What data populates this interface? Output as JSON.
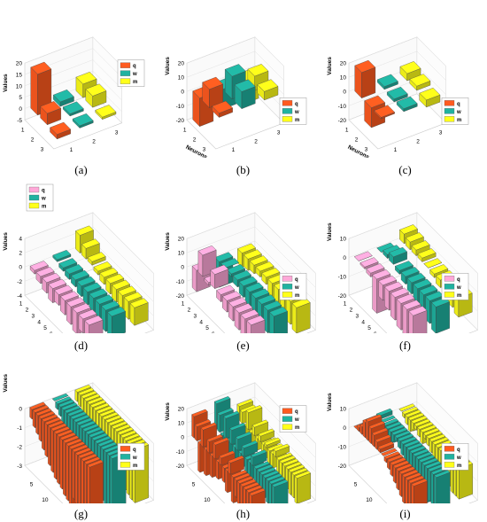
{
  "colors": {
    "q": "#ff5a1f",
    "w": "#20b2a0",
    "m": "#ffff1a",
    "q_light": "#ffa8d8"
  },
  "chart_data": [
    {
      "type": "bar3d",
      "caption": "(a)",
      "ylabel": "Values",
      "xlabel": "",
      "ylim": [
        -5,
        20
      ],
      "yticks": [
        -5,
        0,
        5,
        10,
        15,
        20
      ],
      "neuron_ticks": [
        "1",
        "2",
        "3"
      ],
      "gene_ticks": [
        "1",
        "2",
        "3"
      ],
      "legend": [
        "q",
        "w",
        "m"
      ],
      "legend_position": "right",
      "series": [
        {
          "name": "q",
          "color": "q",
          "values": [
            18,
            5,
            -2
          ]
        },
        {
          "name": "w",
          "color": "w",
          "values": [
            2,
            1,
            -1
          ]
        },
        {
          "name": "m",
          "color": "m",
          "values": [
            6,
            5,
            -1
          ]
        }
      ]
    },
    {
      "type": "bar3d",
      "caption": "(b)",
      "ylabel": "Values",
      "xlabel": "Neurons",
      "ylim": [
        -20,
        20
      ],
      "yticks": [
        -20,
        -10,
        0,
        10,
        20
      ],
      "neuron_ticks": [
        "1",
        "2",
        "3"
      ],
      "gene_ticks": [
        "1",
        "2",
        "3"
      ],
      "legend": [
        "q",
        "w",
        "m"
      ],
      "legend_position": "bottom-right",
      "series": [
        {
          "name": "q",
          "color": "q",
          "values": [
            -20,
            13,
            3
          ]
        },
        {
          "name": "w",
          "color": "w",
          "values": [
            -14,
            16,
            12
          ]
        },
        {
          "name": "m",
          "color": "m",
          "values": [
            -16,
            10,
            6
          ]
        }
      ]
    },
    {
      "type": "bar3d",
      "caption": "(c)",
      "ylabel": "Values",
      "xlabel": "Neurons",
      "ylim": [
        -20,
        20
      ],
      "yticks": [
        -20,
        -10,
        0,
        10,
        20
      ],
      "neuron_ticks": [
        "1",
        "2",
        "3"
      ],
      "gene_ticks": [
        "1",
        "2",
        "3"
      ],
      "legend": [
        "q",
        "w",
        "m"
      ],
      "legend_position": "bottom-right",
      "series": [
        {
          "name": "q",
          "color": "q",
          "values": [
            18,
            -14,
            -1
          ]
        },
        {
          "name": "w",
          "color": "w",
          "values": [
            2,
            -2,
            -2
          ]
        },
        {
          "name": "m",
          "color": "m",
          "values": [
            5,
            3,
            -5
          ]
        }
      ]
    },
    {
      "type": "bar3d",
      "caption": "(d)",
      "ylabel": "Values",
      "xlabel": "Neurons",
      "ylim": [
        -4,
        4
      ],
      "yticks": [
        -4,
        -2,
        0,
        2,
        4
      ],
      "neuron_ticks": [
        "1",
        "2",
        "3",
        "4",
        "5",
        "6",
        "7",
        "8",
        "9",
        "10"
      ],
      "gene_ticks": [
        "1",
        "2",
        "3"
      ],
      "legend": [
        "q",
        "w",
        "m"
      ],
      "legend_position": "top-left",
      "series": [
        {
          "name": "q",
          "color": "q_light",
          "values": [
            -0.5,
            -1,
            -1.5,
            -2,
            -1.5,
            -2,
            -2.5,
            -3,
            -2,
            -2.5
          ]
        },
        {
          "name": "w",
          "color": "w",
          "values": [
            0.3,
            -0.5,
            -0.8,
            -1,
            -1.5,
            -1.8,
            -2,
            -2.5,
            -3,
            -3
          ]
        },
        {
          "name": "m",
          "color": "m",
          "values": [
            2.5,
            1.5,
            0.5,
            -0.5,
            -1,
            -1.5,
            -1.8,
            -2,
            -2.5,
            -2.5
          ]
        }
      ]
    },
    {
      "type": "bar3d",
      "caption": "(e)",
      "ylabel": "Values",
      "xlabel": "Neurons",
      "ylim": [
        -20,
        20
      ],
      "yticks": [
        -20,
        -10,
        0,
        10,
        20
      ],
      "neuron_ticks": [
        "1",
        "2",
        "3",
        "4",
        "5",
        "6",
        "7",
        "8",
        "9",
        "10"
      ],
      "gene_ticks": [
        "1",
        "2",
        "3"
      ],
      "legend": [
        "q",
        "w",
        "m"
      ],
      "legend_position": "bottom-right",
      "series": [
        {
          "name": "q",
          "color": "q_light",
          "values": [
            -15,
            15,
            -2,
            10,
            -5,
            -8,
            -10,
            -12,
            -14,
            -16
          ]
        },
        {
          "name": "w",
          "color": "w",
          "values": [
            -18,
            0,
            -2,
            -5,
            -8,
            -10,
            -12,
            -14,
            -16,
            -18
          ]
        },
        {
          "name": "m",
          "color": "m",
          "values": [
            -10,
            -8,
            -6,
            -4,
            -5,
            -10,
            -12,
            -14,
            -16,
            -18
          ]
        }
      ]
    },
    {
      "type": "bar3d",
      "caption": "(f)",
      "ylabel": "Values",
      "xlabel": "Neurons",
      "ylim": [
        -20,
        10
      ],
      "yticks": [
        -20,
        -10,
        0,
        10
      ],
      "neuron_ticks": [
        "1",
        "2",
        "3",
        "4",
        "5",
        "6",
        "7",
        "8",
        "9",
        "10"
      ],
      "gene_ticks": [
        "1",
        "2",
        "3"
      ],
      "legend": [
        "q",
        "w",
        "m"
      ],
      "legend_position": "bottom-right",
      "series": [
        {
          "name": "q",
          "color": "q_light",
          "values": [
            0,
            -1,
            -2,
            -18,
            -8,
            -10,
            -12,
            -14,
            -15,
            -16
          ]
        },
        {
          "name": "w",
          "color": "w",
          "values": [
            0,
            2,
            4,
            -2,
            -4,
            -6,
            -8,
            -10,
            -12,
            -14
          ]
        },
        {
          "name": "m",
          "color": "m",
          "values": [
            5,
            4,
            3,
            2,
            0,
            -2,
            -4,
            -6,
            -8,
            -10
          ]
        }
      ]
    },
    {
      "type": "bar3d",
      "caption": "(g)",
      "ylabel": "Values",
      "xlabel": "Neurons",
      "ylim": [
        -3,
        0
      ],
      "yticks": [
        -3,
        -2,
        -1,
        0
      ],
      "neuron_ticks": [
        "5",
        "10",
        "15",
        "20"
      ],
      "neuron_tick_positions": [
        5,
        10,
        15,
        20
      ],
      "gene_ticks": [
        "1",
        "2",
        "3"
      ],
      "legend": [
        "q",
        "w",
        "m"
      ],
      "legend_position": "bottom-right",
      "series": [
        {
          "name": "q",
          "color": "q",
          "values": [
            -0.5,
            -0.8,
            -1,
            -1.2,
            -1.5,
            -1.7,
            -2,
            -2.2,
            -2.4,
            -2.5,
            -2.6,
            -2.8,
            -2.9,
            -3,
            -2.5,
            -2.6,
            -2.8,
            -2.9,
            -3,
            -3
          ]
        },
        {
          "name": "w",
          "color": "w",
          "values": [
            0,
            -0.3,
            -0.5,
            -0.8,
            -1,
            -1.2,
            -1.4,
            -1.6,
            -1.8,
            -2,
            -2.1,
            -2.2,
            -2.3,
            -2.4,
            -2.5,
            -2.6,
            -2.7,
            -2.8,
            -2.9,
            -3
          ]
        },
        {
          "name": "m",
          "color": "m",
          "values": [
            -0.5,
            -0.6,
            -0.8,
            -1,
            -1.2,
            -1.3,
            -1.5,
            -1.6,
            -1.8,
            -2,
            -2.1,
            -2.2,
            -2.3,
            -2.4,
            -2.5,
            -2.6,
            -2.6,
            -2.7,
            -2.8,
            -2.8
          ]
        }
      ]
    },
    {
      "type": "bar3d",
      "caption": "(h)",
      "ylabel": "Values",
      "xlabel": "Neurons",
      "ylim": [
        -20,
        20
      ],
      "yticks": [
        -20,
        -10,
        0,
        10,
        20
      ],
      "neuron_ticks": [
        "5",
        "10",
        "15",
        "20"
      ],
      "neuron_tick_positions": [
        5,
        10,
        15,
        20
      ],
      "gene_ticks": [
        "1",
        "2",
        "3"
      ],
      "legend": [
        "q",
        "w",
        "m"
      ],
      "legend_position": "right",
      "series": [
        {
          "name": "q",
          "color": "q",
          "values": [
            15,
            10,
            -20,
            12,
            -18,
            8,
            -15,
            10,
            -12,
            5,
            -10,
            -15,
            8,
            -18,
            -12,
            -15,
            -18,
            -20,
            -16,
            -18
          ]
        },
        {
          "name": "w",
          "color": "w",
          "values": [
            18,
            12,
            -15,
            14,
            -16,
            10,
            -12,
            8,
            -10,
            6,
            -14,
            -12,
            6,
            -16,
            -18,
            -10,
            -14,
            -16,
            -18,
            -20
          ]
        },
        {
          "name": "m",
          "color": "m",
          "values": [
            10,
            8,
            -10,
            12,
            -12,
            6,
            -8,
            4,
            -10,
            2,
            -12,
            -10,
            4,
            -14,
            -10,
            -12,
            -14,
            -16,
            -16,
            -18
          ]
        }
      ]
    },
    {
      "type": "bar3d",
      "caption": "(i)",
      "ylabel": "Values",
      "xlabel": "Neurons",
      "ylim": [
        -20,
        10
      ],
      "yticks": [
        -20,
        -10,
        0,
        10
      ],
      "neuron_ticks": [
        "5",
        "10",
        "15",
        "20"
      ],
      "neuron_tick_positions": [
        5,
        10,
        15,
        20
      ],
      "gene_ticks": [
        "1",
        "2",
        "3"
      ],
      "legend": [
        "q",
        "w",
        "m"
      ],
      "legend_position": "bottom-right",
      "series": [
        {
          "name": "q",
          "color": "q",
          "values": [
            0,
            2,
            4,
            8,
            10,
            8,
            6,
            4,
            2,
            0,
            -2,
            -4,
            -6,
            -8,
            -10,
            -12,
            -14,
            -16,
            -18,
            -18
          ]
        },
        {
          "name": "w",
          "color": "w",
          "values": [
            2,
            0,
            -2,
            -4,
            -6,
            -4,
            -2,
            -4,
            -6,
            -8,
            -10,
            -8,
            -10,
            -12,
            -14,
            -16,
            -18,
            -16,
            -18,
            -18
          ]
        },
        {
          "name": "m",
          "color": "m",
          "values": [
            0,
            -2,
            -4,
            -6,
            -4,
            -2,
            -4,
            -6,
            -2,
            -4,
            -6,
            -8,
            -10,
            -12,
            -14,
            -12,
            -14,
            -16,
            -16,
            -16
          ]
        }
      ]
    }
  ]
}
